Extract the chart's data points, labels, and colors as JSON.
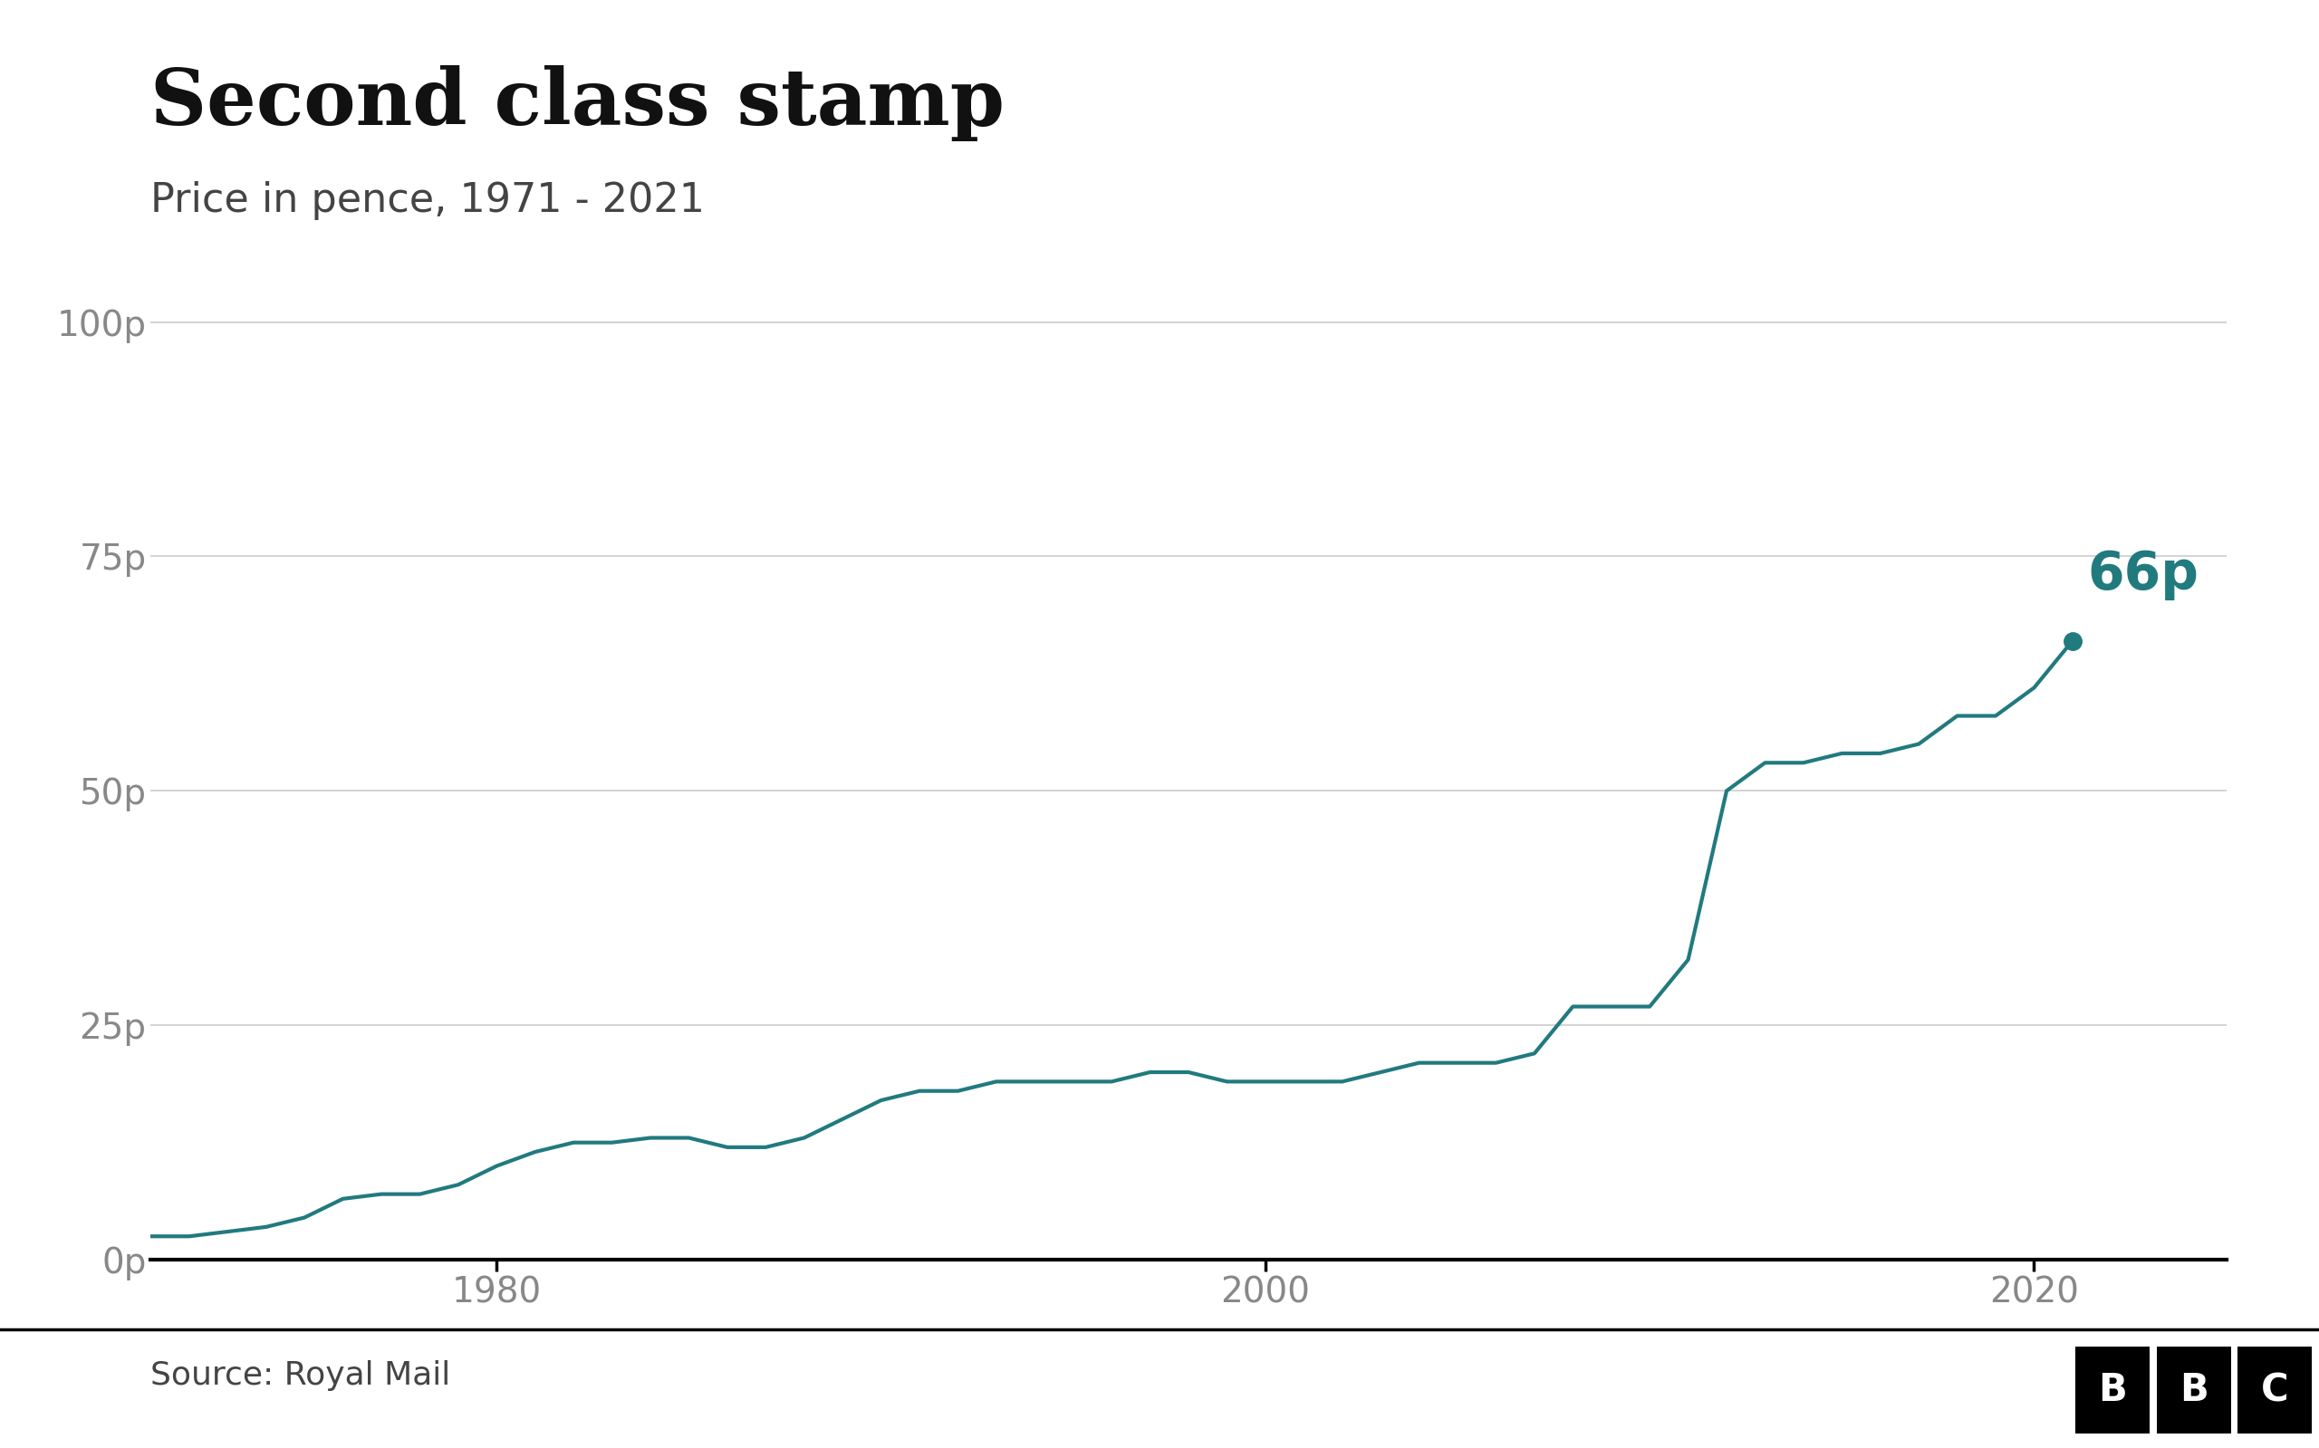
{
  "title": "Second class stamp",
  "subtitle": "Price in pence, 1971 - 2021",
  "source": "Source: Royal Mail",
  "years": [
    1971,
    1972,
    1973,
    1974,
    1975,
    1976,
    1977,
    1978,
    1979,
    1980,
    1981,
    1982,
    1983,
    1984,
    1985,
    1986,
    1987,
    1988,
    1989,
    1990,
    1991,
    1992,
    1993,
    1994,
    1995,
    1996,
    1997,
    1998,
    1999,
    2000,
    2001,
    2002,
    2003,
    2004,
    2005,
    2006,
    2007,
    2008,
    2009,
    2010,
    2011,
    2012,
    2013,
    2014,
    2015,
    2016,
    2017,
    2018,
    2019,
    2020,
    2021
  ],
  "prices": [
    2.5,
    2.5,
    3,
    3.5,
    4.5,
    6.5,
    7,
    7,
    8,
    10,
    11.5,
    12.5,
    12.5,
    13,
    13,
    12,
    12,
    13,
    15,
    17,
    18,
    18,
    19,
    19,
    19,
    19,
    20,
    20,
    19,
    19,
    19,
    19,
    20,
    21,
    21,
    21,
    22,
    27,
    27,
    27,
    32,
    50,
    53,
    53,
    54,
    54,
    55,
    58,
    58,
    61,
    66
  ],
  "line_color": "#217a7e",
  "end_point_color": "#217a7e",
  "end_label": "66p",
  "end_label_color": "#217a7e",
  "bg_color": "#ffffff",
  "grid_color": "#cccccc",
  "axis_color": "#000000",
  "tick_label_color": "#888888",
  "title_color": "#111111",
  "subtitle_color": "#444444",
  "source_color": "#444444",
  "yticks": [
    0,
    25,
    50,
    75,
    100
  ],
  "ytick_labels": [
    "0p",
    "25p",
    "50p",
    "75p",
    "100p"
  ],
  "xticks": [
    1980,
    2000,
    2020
  ],
  "ylim": [
    0,
    105
  ],
  "xlim": [
    1971,
    2025
  ]
}
